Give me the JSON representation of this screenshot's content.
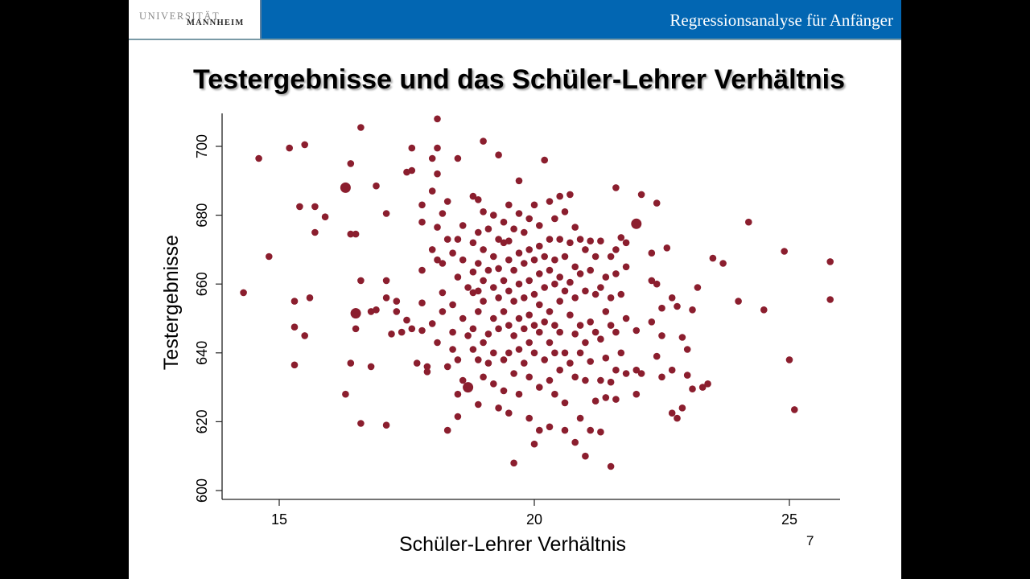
{
  "header": {
    "logo_line1": "UNIVERSITÄT",
    "logo_line2": "MANNHEIM",
    "course_title": "Regressionsanalyse für Anfänger",
    "bar_color": "#0266b2"
  },
  "slide": {
    "title": "Testergebnisse und das Schüler-Lehrer Verhältnis",
    "page_number": "7"
  },
  "chart_data": {
    "type": "scatter",
    "title": "Testergebnisse und das Schüler-Lehrer Verhältnis",
    "xlabel": "Schüler-Lehrer Verhältnis",
    "ylabel": "Testergebnisse",
    "xlim": [
      14.0,
      26.0
    ],
    "ylim": [
      598,
      710
    ],
    "xticks": [
      15,
      20,
      25
    ],
    "yticks": [
      600,
      620,
      640,
      660,
      680,
      700
    ],
    "grid": false,
    "legend": null,
    "marker_color": "#8b1e2e",
    "points": [
      [
        14.3,
        657.5
      ],
      [
        14.6,
        696.5
      ],
      [
        14.8,
        668
      ],
      [
        15.2,
        699.5
      ],
      [
        15.3,
        647.5
      ],
      [
        15.3,
        636.5
      ],
      [
        15.3,
        655
      ],
      [
        15.4,
        682.5
      ],
      [
        15.5,
        700.5
      ],
      [
        15.5,
        645
      ],
      [
        15.6,
        656
      ],
      [
        15.7,
        675
      ],
      [
        15.7,
        682.5
      ],
      [
        15.9,
        679.5
      ],
      [
        16.3,
        628
      ],
      [
        16.3,
        688
      ],
      [
        16.4,
        695
      ],
      [
        16.4,
        674.5
      ],
      [
        16.4,
        637
      ],
      [
        16.5,
        674.5
      ],
      [
        16.5,
        652
      ],
      [
        16.5,
        651
      ],
      [
        16.5,
        647
      ],
      [
        16.6,
        705.5
      ],
      [
        16.6,
        661
      ],
      [
        16.6,
        619.5
      ],
      [
        16.8,
        652
      ],
      [
        16.8,
        636
      ],
      [
        16.9,
        688.5
      ],
      [
        16.9,
        652.5
      ],
      [
        17.1,
        680.5
      ],
      [
        17.1,
        619
      ],
      [
        17.1,
        661
      ],
      [
        17.1,
        656
      ],
      [
        17.2,
        645.5
      ],
      [
        17.3,
        655
      ],
      [
        17.3,
        652
      ],
      [
        17.4,
        646
      ],
      [
        17.5,
        692.5
      ],
      [
        17.5,
        649.5
      ],
      [
        17.6,
        693
      ],
      [
        17.6,
        699.5
      ],
      [
        17.6,
        647
      ],
      [
        17.7,
        637
      ],
      [
        17.8,
        683
      ],
      [
        17.8,
        678
      ],
      [
        17.8,
        664
      ],
      [
        17.8,
        654.5
      ],
      [
        17.8,
        646.5
      ],
      [
        17.9,
        636
      ],
      [
        17.9,
        634.5
      ],
      [
        18.0,
        696.5
      ],
      [
        18.0,
        687
      ],
      [
        18.0,
        670
      ],
      [
        18.0,
        648.5
      ],
      [
        18.1,
        708
      ],
      [
        18.1,
        699.5
      ],
      [
        18.1,
        692
      ],
      [
        18.1,
        676.5
      ],
      [
        18.1,
        667
      ],
      [
        18.1,
        643
      ],
      [
        18.2,
        680.5
      ],
      [
        18.2,
        666
      ],
      [
        18.2,
        657.5
      ],
      [
        18.2,
        652
      ],
      [
        18.3,
        684
      ],
      [
        18.3,
        673
      ],
      [
        18.3,
        636
      ],
      [
        18.3,
        617.5
      ],
      [
        18.4,
        669
      ],
      [
        18.4,
        654
      ],
      [
        18.4,
        646
      ],
      [
        18.4,
        641
      ],
      [
        18.5,
        696.5
      ],
      [
        18.5,
        673
      ],
      [
        18.5,
        662
      ],
      [
        18.5,
        638
      ],
      [
        18.5,
        628
      ],
      [
        18.5,
        621.5
      ],
      [
        18.6,
        677
      ],
      [
        18.6,
        667
      ],
      [
        18.6,
        650
      ],
      [
        18.6,
        632
      ],
      [
        18.7,
        630
      ],
      [
        18.7,
        659
      ],
      [
        18.7,
        645
      ],
      [
        18.8,
        685.5
      ],
      [
        18.8,
        672
      ],
      [
        18.8,
        663.5
      ],
      [
        18.8,
        657.5
      ],
      [
        18.8,
        647
      ],
      [
        18.8,
        641
      ],
      [
        18.9,
        684.5
      ],
      [
        18.9,
        675
      ],
      [
        18.9,
        666
      ],
      [
        18.9,
        658
      ],
      [
        18.9,
        652
      ],
      [
        18.9,
        638
      ],
      [
        18.9,
        625
      ],
      [
        19.0,
        701.5
      ],
      [
        19.0,
        681
      ],
      [
        19.0,
        670
      ],
      [
        19.0,
        661
      ],
      [
        19.0,
        655
      ],
      [
        19.0,
        643
      ],
      [
        19.0,
        633
      ],
      [
        19.1,
        676
      ],
      [
        19.1,
        664
      ],
      [
        19.1,
        645.5
      ],
      [
        19.1,
        637
      ],
      [
        19.2,
        680
      ],
      [
        19.2,
        668
      ],
      [
        19.2,
        659
      ],
      [
        19.2,
        650
      ],
      [
        19.2,
        640
      ],
      [
        19.2,
        631
      ],
      [
        19.3,
        697.5
      ],
      [
        19.3,
        673
      ],
      [
        19.3,
        664.5
      ],
      [
        19.3,
        656
      ],
      [
        19.3,
        647
      ],
      [
        19.3,
        624
      ],
      [
        19.4,
        678
      ],
      [
        19.4,
        672
      ],
      [
        19.4,
        661
      ],
      [
        19.4,
        652
      ],
      [
        19.4,
        638
      ],
      [
        19.4,
        629
      ],
      [
        19.5,
        683
      ],
      [
        19.5,
        672.5
      ],
      [
        19.5,
        667
      ],
      [
        19.5,
        658
      ],
      [
        19.5,
        648
      ],
      [
        19.5,
        640
      ],
      [
        19.5,
        622.5
      ],
      [
        19.6,
        676
      ],
      [
        19.6,
        664
      ],
      [
        19.6,
        655
      ],
      [
        19.6,
        645
      ],
      [
        19.6,
        634
      ],
      [
        19.6,
        608
      ],
      [
        19.7,
        690
      ],
      [
        19.7,
        680.5
      ],
      [
        19.7,
        669
      ],
      [
        19.7,
        660
      ],
      [
        19.7,
        650
      ],
      [
        19.7,
        641
      ],
      [
        19.7,
        628
      ],
      [
        19.8,
        675
      ],
      [
        19.8,
        666
      ],
      [
        19.8,
        656
      ],
      [
        19.8,
        647
      ],
      [
        19.8,
        637
      ],
      [
        19.9,
        679
      ],
      [
        19.9,
        670
      ],
      [
        19.9,
        661
      ],
      [
        19.9,
        651
      ],
      [
        19.9,
        643
      ],
      [
        19.9,
        633
      ],
      [
        19.9,
        621
      ],
      [
        20.0,
        683
      ],
      [
        20.0,
        667
      ],
      [
        20.0,
        657
      ],
      [
        20.0,
        648
      ],
      [
        20.0,
        640
      ],
      [
        20.0,
        613.5
      ],
      [
        20.1,
        677
      ],
      [
        20.1,
        671
      ],
      [
        20.1,
        663
      ],
      [
        20.1,
        654
      ],
      [
        20.1,
        646
      ],
      [
        20.1,
        630
      ],
      [
        20.1,
        617.5
      ],
      [
        20.2,
        696
      ],
      [
        20.2,
        668
      ],
      [
        20.2,
        659
      ],
      [
        20.2,
        649
      ],
      [
        20.2,
        638
      ],
      [
        20.3,
        684
      ],
      [
        20.3,
        673
      ],
      [
        20.3,
        664
      ],
      [
        20.3,
        652
      ],
      [
        20.3,
        643
      ],
      [
        20.3,
        632
      ],
      [
        20.3,
        618.5
      ],
      [
        20.4,
        679
      ],
      [
        20.4,
        667
      ],
      [
        20.4,
        660
      ],
      [
        20.4,
        648
      ],
      [
        20.4,
        640
      ],
      [
        20.4,
        628
      ],
      [
        20.5,
        685.5
      ],
      [
        20.5,
        673
      ],
      [
        20.5,
        662
      ],
      [
        20.5,
        655
      ],
      [
        20.5,
        646
      ],
      [
        20.5,
        635
      ],
      [
        20.6,
        681
      ],
      [
        20.6,
        668
      ],
      [
        20.6,
        658
      ],
      [
        20.6,
        640
      ],
      [
        20.6,
        625.5
      ],
      [
        20.6,
        617.5
      ],
      [
        20.7,
        686
      ],
      [
        20.7,
        672
      ],
      [
        20.7,
        660.5
      ],
      [
        20.7,
        651
      ],
      [
        20.7,
        637
      ],
      [
        20.8,
        676.5
      ],
      [
        20.8,
        665
      ],
      [
        20.8,
        656
      ],
      [
        20.8,
        645.5
      ],
      [
        20.8,
        633
      ],
      [
        20.8,
        614
      ],
      [
        20.9,
        673
      ],
      [
        20.9,
        663
      ],
      [
        20.9,
        648
      ],
      [
        20.9,
        640
      ],
      [
        20.9,
        621
      ],
      [
        21.0,
        670
      ],
      [
        21.0,
        658
      ],
      [
        21.0,
        643
      ],
      [
        21.0,
        632
      ],
      [
        21.0,
        610
      ],
      [
        21.1,
        672.5
      ],
      [
        21.1,
        664
      ],
      [
        21.1,
        649
      ],
      [
        21.1,
        637.5
      ],
      [
        21.1,
        617.5
      ],
      [
        21.2,
        668
      ],
      [
        21.2,
        657
      ],
      [
        21.2,
        646
      ],
      [
        21.2,
        626
      ],
      [
        21.3,
        672.5
      ],
      [
        21.3,
        659
      ],
      [
        21.3,
        644
      ],
      [
        21.3,
        632
      ],
      [
        21.3,
        617
      ],
      [
        21.4,
        662
      ],
      [
        21.4,
        652
      ],
      [
        21.4,
        638.5
      ],
      [
        21.4,
        627
      ],
      [
        21.5,
        668
      ],
      [
        21.5,
        656
      ],
      [
        21.5,
        648
      ],
      [
        21.5,
        631.5
      ],
      [
        21.5,
        607
      ],
      [
        21.6,
        688
      ],
      [
        21.6,
        670
      ],
      [
        21.6,
        663
      ],
      [
        21.6,
        646
      ],
      [
        21.6,
        635
      ],
      [
        21.6,
        626.5
      ],
      [
        21.7,
        673.5
      ],
      [
        21.7,
        657
      ],
      [
        21.7,
        640
      ],
      [
        21.8,
        672
      ],
      [
        21.8,
        665
      ],
      [
        21.8,
        650
      ],
      [
        21.8,
        634
      ],
      [
        22.0,
        677.5
      ],
      [
        22.0,
        646.5
      ],
      [
        22.0,
        628
      ],
      [
        22.0,
        635
      ],
      [
        22.1,
        686
      ],
      [
        22.1,
        634
      ],
      [
        22.3,
        669
      ],
      [
        22.3,
        661
      ],
      [
        22.3,
        649
      ],
      [
        22.4,
        683.5
      ],
      [
        22.4,
        660
      ],
      [
        22.4,
        639
      ],
      [
        22.5,
        653
      ],
      [
        22.5,
        645
      ],
      [
        22.5,
        633
      ],
      [
        22.6,
        670.5
      ],
      [
        22.7,
        622.5
      ],
      [
        22.7,
        635
      ],
      [
        22.7,
        656
      ],
      [
        22.8,
        621
      ],
      [
        22.8,
        653.5
      ],
      [
        22.9,
        644.5
      ],
      [
        22.9,
        624
      ],
      [
        23.0,
        633.5
      ],
      [
        23.0,
        641
      ],
      [
        23.1,
        652.5
      ],
      [
        23.1,
        629.5
      ],
      [
        23.2,
        659
      ],
      [
        23.3,
        630
      ],
      [
        23.4,
        631
      ],
      [
        23.5,
        667.5
      ],
      [
        23.7,
        666
      ],
      [
        24.0,
        655
      ],
      [
        24.2,
        678
      ],
      [
        24.5,
        652.5
      ],
      [
        24.9,
        669.5
      ],
      [
        25.0,
        638
      ],
      [
        25.1,
        623.5
      ],
      [
        25.8,
        666.5
      ],
      [
        25.8,
        655.5
      ]
    ],
    "large_points": [
      [
        16.3,
        688
      ],
      [
        18.7,
        630
      ],
      [
        22.0,
        677.5
      ],
      [
        16.5,
        651.5
      ]
    ]
  },
  "axes": {
    "x_tick_labels": [
      "15",
      "20",
      "25"
    ],
    "y_tick_labels": [
      "600",
      "620",
      "640",
      "660",
      "680",
      "700"
    ],
    "xlabel": "Schüler-Lehrer Verhältnis",
    "ylabel": "Testergebnisse"
  }
}
